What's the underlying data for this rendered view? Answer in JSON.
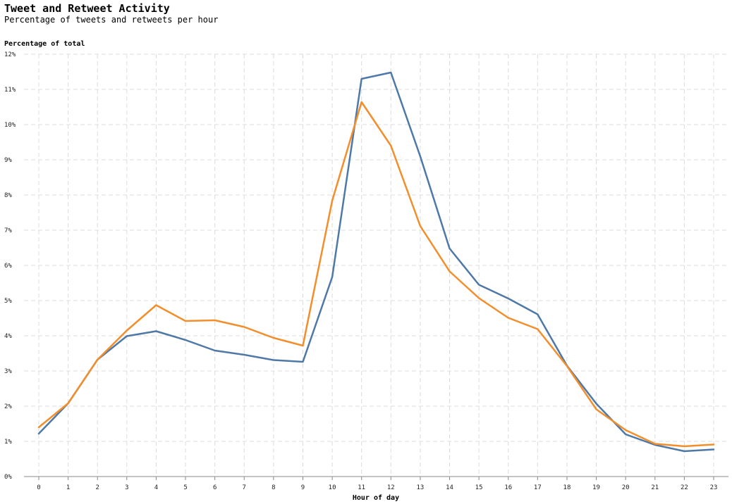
{
  "header": {
    "title": "Tweet and Retweet Activity",
    "subtitle": "Percentage of tweets and retweets per hour"
  },
  "chart_data": {
    "type": "line",
    "title": "Tweet and Retweet Activity",
    "subtitle": "Percentage of tweets and retweets per hour",
    "xlabel": "Hour of day",
    "ylabel": "Percentage of total",
    "x": [
      0,
      1,
      2,
      3,
      4,
      5,
      6,
      7,
      8,
      9,
      10,
      11,
      12,
      13,
      14,
      15,
      16,
      17,
      18,
      19,
      20,
      21,
      22,
      23
    ],
    "x_tick_labels": [
      "0",
      "1",
      "2",
      "3",
      "4",
      "5",
      "6",
      "7",
      "8",
      "9",
      "10",
      "11",
      "12",
      "13",
      "14",
      "15",
      "16",
      "17",
      "18",
      "19",
      "20",
      "21",
      "22",
      "23"
    ],
    "ylim": [
      0,
      12
    ],
    "y_tick_labels": [
      "0%",
      "1%",
      "2%",
      "3%",
      "4%",
      "5%",
      "6%",
      "7%",
      "8%",
      "9%",
      "10%",
      "11%",
      "12%"
    ],
    "grid": true,
    "series": [
      {
        "color": "#4e79a7",
        "values": [
          1.22,
          2.08,
          3.32,
          3.99,
          4.13,
          3.88,
          3.58,
          3.46,
          3.31,
          3.26,
          5.67,
          11.3,
          11.48,
          9.1,
          6.48,
          5.45,
          5.06,
          4.61,
          3.15,
          2.07,
          1.2,
          0.9,
          0.72,
          0.77
        ]
      },
      {
        "color": "#f28e2b",
        "values": [
          1.4,
          2.08,
          3.32,
          4.15,
          4.87,
          4.42,
          4.44,
          4.25,
          3.94,
          3.72,
          7.84,
          10.64,
          9.4,
          7.12,
          5.83,
          5.07,
          4.51,
          4.19,
          3.14,
          1.91,
          1.32,
          0.93,
          0.86,
          0.91
        ]
      }
    ]
  }
}
